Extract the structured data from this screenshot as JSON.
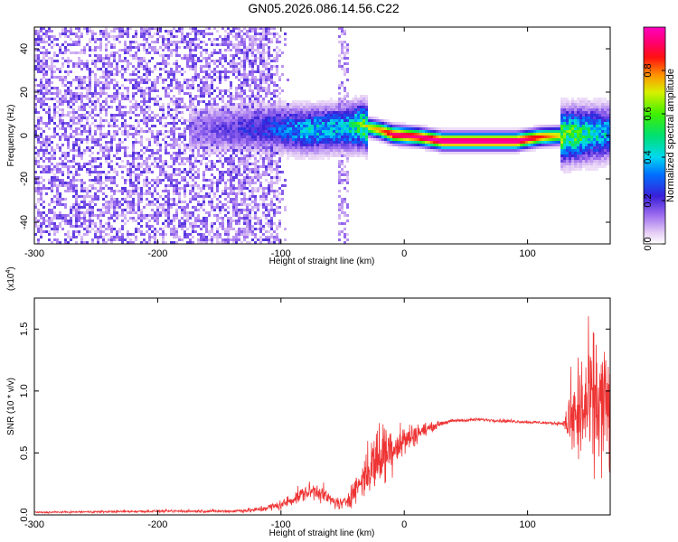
{
  "figure": {
    "title": "GN05.2026.086.14.56.C22"
  },
  "chart_data": [
    {
      "type": "heatmap",
      "title": "GN05.2026.086.14.56.C22",
      "xlabel": "Height of straight line (km)",
      "ylabel": "Frequency (Hz)",
      "xlim": [
        -300,
        167
      ],
      "ylim": [
        -50,
        50
      ],
      "x_ticks": [
        -300,
        -200,
        -100,
        0,
        100
      ],
      "x_tick_labels": [
        "-300",
        "-200",
        "-100",
        "0",
        "100"
      ],
      "y_ticks": [
        -40,
        -20,
        0,
        20,
        40
      ],
      "y_tick_labels": [
        "-40",
        "-20",
        "0",
        "20",
        "40"
      ],
      "colorbar": {
        "label": "Normalized spectral amplitude",
        "range": [
          0,
          1
        ],
        "ticks": [
          0.0,
          0.2,
          0.4,
          0.6,
          0.8
        ],
        "tick_labels": [
          "0.0",
          "0.2",
          "0.4",
          "0.6",
          "0.8"
        ],
        "colormap": "rainbow (white-violet-blue-cyan-green-yellow-red-magenta)"
      },
      "ridge": {
        "description": "frequency of the coherent signal band",
        "points": [
          {
            "x": -170,
            "y": 3,
            "amplitude": 0.15
          },
          {
            "x": -110,
            "y": 4,
            "amplitude": 0.3
          },
          {
            "x": -80,
            "y": 3,
            "amplitude": 0.45
          },
          {
            "x": -50,
            "y": 4,
            "amplitude": 0.45
          },
          {
            "x": -35,
            "y": 5,
            "amplitude": 0.65
          },
          {
            "x": -20,
            "y": 3,
            "amplitude": 0.8
          },
          {
            "x": -10,
            "y": 1,
            "amplitude": 0.95
          },
          {
            "x": 10,
            "y": 0,
            "amplitude": 0.95
          },
          {
            "x": 30,
            "y": -2,
            "amplitude": 1.0
          },
          {
            "x": 90,
            "y": -2,
            "amplitude": 1.0
          },
          {
            "x": 110,
            "y": 0,
            "amplitude": 0.85
          },
          {
            "x": 140,
            "y": 1,
            "amplitude": 0.6
          },
          {
            "x": 167,
            "y": 2,
            "amplitude": 0.4
          }
        ]
      },
      "noise_region": {
        "x_from": -300,
        "x_to": -100,
        "amplitude": 0.15
      },
      "grid": false
    },
    {
      "type": "line",
      "xlabel": "Height of straight line (km)",
      "ylabel": "SNR (10 * v/v)",
      "exponent_label": "(x10",
      "exponent_power": "4",
      "xlim": [
        -300,
        167
      ],
      "ylim": [
        0,
        1.75
      ],
      "x_ticks": [
        -300,
        -200,
        -100,
        0,
        100
      ],
      "x_tick_labels": [
        "-300",
        "-200",
        "-100",
        "0",
        "100"
      ],
      "y_ticks": [
        0.0,
        0.5,
        1.0,
        1.5
      ],
      "y_tick_labels": [
        "0.0",
        "0.5",
        "1.0",
        "1.5"
      ],
      "color": "#ee3333",
      "series": [
        {
          "x": [
            -300,
            -200,
            -140,
            -120,
            -100,
            -90,
            -80,
            -70,
            -60,
            -50,
            -40,
            -30,
            -20,
            -10,
            0,
            10,
            20,
            30,
            40,
            60,
            80,
            100,
            120,
            130,
            135,
            145,
            155,
            167
          ],
          "y": [
            0.02,
            0.03,
            0.03,
            0.04,
            0.08,
            0.13,
            0.18,
            0.2,
            0.12,
            0.08,
            0.2,
            0.35,
            0.48,
            0.55,
            0.6,
            0.66,
            0.7,
            0.74,
            0.76,
            0.77,
            0.76,
            0.75,
            0.74,
            0.74,
            0.75,
            0.85,
            0.9,
            0.85
          ],
          "noise_amplitude": [
            0.01,
            0.015,
            0.02,
            0.03,
            0.06,
            0.08,
            0.1,
            0.12,
            0.08,
            0.08,
            0.15,
            0.3,
            0.45,
            0.3,
            0.2,
            0.12,
            0.06,
            0.03,
            0.02,
            0.02,
            0.02,
            0.02,
            0.02,
            0.03,
            0.55,
            0.8,
            0.85,
            0.85
          ]
        }
      ],
      "grid": false
    }
  ]
}
